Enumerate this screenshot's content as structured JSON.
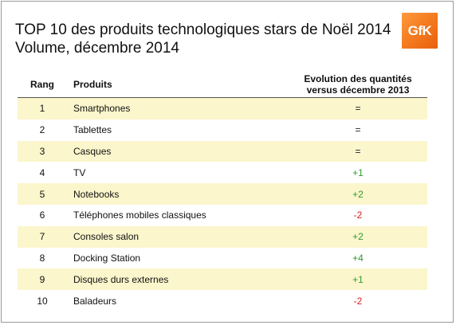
{
  "title": {
    "line1": "TOP 10 des produits technologiques stars de Noël 2014",
    "line2": "Volume, décembre 2014"
  },
  "logo": {
    "text": "GfK",
    "color": "#f47a20"
  },
  "table": {
    "headers": {
      "rang": "Rang",
      "produits": "Produits",
      "evolution_line1": "Evolution des quantités",
      "evolution_line2": "versus décembre 2013"
    },
    "rows": [
      {
        "rang": "1",
        "produit": "Smartphones",
        "evolution": "=",
        "trend": "eq"
      },
      {
        "rang": "2",
        "produit": "Tablettes",
        "evolution": "=",
        "trend": "eq"
      },
      {
        "rang": "3",
        "produit": "Casques",
        "evolution": "=",
        "trend": "eq"
      },
      {
        "rang": "4",
        "produit": "TV",
        "evolution": "+1",
        "trend": "pos"
      },
      {
        "rang": "5",
        "produit": "Notebooks",
        "evolution": "+2",
        "trend": "pos"
      },
      {
        "rang": "6",
        "produit": "Téléphones mobiles classiques",
        "evolution": "-2",
        "trend": "neg"
      },
      {
        "rang": "7",
        "produit": "Consoles salon",
        "evolution": "+2",
        "trend": "pos"
      },
      {
        "rang": "8",
        "produit": "Docking Station",
        "evolution": "+4",
        "trend": "pos"
      },
      {
        "rang": "9",
        "produit": "Disques durs externes",
        "evolution": "+1",
        "trend": "pos"
      },
      {
        "rang": "10",
        "produit": "Baladeurs",
        "evolution": "-2",
        "trend": "neg"
      }
    ]
  },
  "colors": {
    "shaded_row": "#fbf6cc",
    "positive": "#2e9b2e",
    "negative": "#d42020"
  }
}
